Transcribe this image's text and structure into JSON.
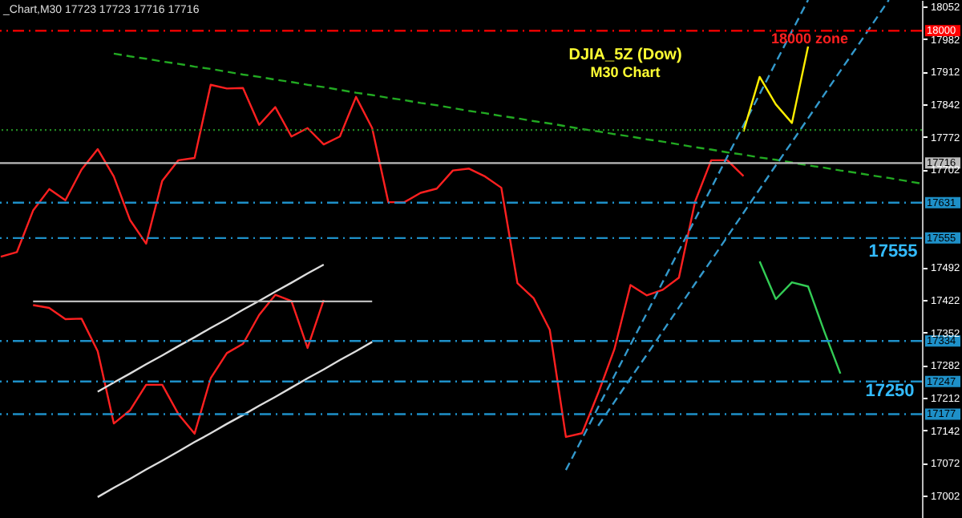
{
  "chart_data": {
    "type": "line",
    "title": "DJIA_5Z (Dow)",
    "subtitle": "M30 Chart",
    "categories": [
      null,
      null,
      null,
      null,
      null,
      null,
      null,
      null,
      null,
      null,
      null,
      null,
      null,
      null,
      null,
      null,
      null,
      null,
      null,
      null,
      null,
      null,
      null,
      null,
      null,
      null,
      null,
      null,
      null,
      null,
      null,
      null,
      null,
      null,
      null,
      null,
      null,
      null,
      null,
      null,
      null,
      null,
      null,
      null,
      null,
      null,
      null,
      null,
      null,
      null,
      null,
      null,
      null,
      null,
      null,
      null,
      null,
      null
    ],
    "ylim": [
      16954,
      18066
    ],
    "grid": false,
    "yticks": [
      18052,
      17982,
      17912,
      17842,
      17772,
      17702,
      17492,
      17422,
      17352,
      17282,
      17212,
      17142,
      17072,
      17002
    ],
    "series": [
      {
        "color": "#ff2020",
        "values": [
          17515,
          17525,
          17614,
          17660,
          17636,
          17702,
          17746,
          17687,
          17594,
          17543,
          17678,
          17722,
          17727,
          17884,
          17876,
          17877,
          17798,
          17836,
          17773,
          17791,
          17756,
          17773,
          17858,
          17791,
          17632,
          17632,
          17652,
          17661,
          17700,
          17704,
          17687,
          17663,
          17458,
          17426,
          17358,
          17128,
          17136,
          17222,
          17316,
          17454,
          17432,
          17444,
          17470,
          17633,
          17722,
          17722,
          17688,
          null,
          null,
          null,
          null,
          null,
          null,
          null,
          null,
          null,
          null,
          null
        ]
      },
      {
        "color": "#ff2020",
        "values": [
          null,
          null,
          17411,
          17405,
          17381,
          17382,
          17312,
          17157,
          17185,
          17240,
          17240,
          17177,
          17135,
          17254,
          17308,
          17328,
          17390,
          17433,
          17420,
          17319,
          17422,
          null,
          null,
          null,
          null,
          null,
          null,
          null,
          null,
          null,
          null,
          null,
          null,
          null,
          null,
          null,
          null,
          null,
          null,
          null,
          null,
          null,
          null,
          null,
          null,
          null,
          null,
          null,
          null,
          null,
          null,
          null,
          null,
          null,
          null,
          null,
          null,
          null
        ]
      },
      {
        "color": "#dddddd",
        "values": [
          null,
          null,
          null,
          null,
          null,
          null,
          17225,
          17245,
          17264,
          17284,
          17303,
          17323,
          17342,
          17362,
          17381,
          17401,
          17420,
          17440,
          17459,
          17479,
          17498,
          null,
          null,
          null,
          null,
          null,
          null,
          null,
          null,
          null,
          null,
          null,
          null,
          null,
          null,
          null,
          null,
          null,
          null,
          null,
          null,
          null,
          null,
          null,
          null,
          null,
          null,
          null,
          null,
          null,
          null,
          null,
          null,
          null,
          null,
          null,
          null,
          null
        ]
      },
      {
        "color": "#dddddd",
        "values": [
          null,
          null,
          null,
          null,
          null,
          null,
          16999,
          17019,
          17038,
          17058,
          17077,
          17097,
          17117,
          17136,
          17156,
          17175,
          17195,
          17214,
          17234,
          17254,
          17273,
          17293,
          17312,
          17332,
          null,
          null,
          null,
          null,
          null,
          null,
          null,
          null,
          null,
          null,
          null,
          null,
          null,
          null,
          null,
          null,
          null,
          null,
          null,
          null,
          null,
          null,
          null,
          null,
          null,
          null,
          null,
          null,
          null,
          null,
          null,
          null,
          null,
          null
        ]
      },
      {
        "color": "#bbbbbb",
        "values": [
          null,
          null,
          17419,
          17419,
          17419,
          17419,
          17419,
          17419,
          17419,
          17419,
          17419,
          17419,
          17419,
          17419,
          17419,
          17419,
          17419,
          17419,
          17419,
          17419,
          17419,
          17419,
          17419,
          17419,
          null,
          null,
          null,
          null,
          null,
          null,
          null,
          null,
          null,
          null,
          null,
          null,
          null,
          null,
          null,
          null,
          null,
          null,
          null,
          null,
          null,
          null,
          null,
          null,
          null,
          null,
          null,
          null,
          null,
          null,
          null,
          null,
          null,
          null
        ]
      },
      {
        "color": "#22aa22",
        "line_style": "dashed",
        "values": [
          null,
          null,
          null,
          null,
          null,
          null,
          null,
          17951,
          17945,
          17940,
          17934,
          17929,
          17923,
          17918,
          17912,
          17906,
          17901,
          17895,
          17890,
          17884,
          17879,
          17873,
          17867,
          17862,
          17856,
          17851,
          17845,
          17840,
          17834,
          17828,
          17823,
          17817,
          17812,
          17806,
          17801,
          17795,
          17789,
          17784,
          17778,
          17773,
          17767,
          17762,
          17756,
          17750,
          17745,
          17739,
          17734,
          17728,
          17723,
          17717,
          17711,
          17706,
          17700,
          17695,
          17689,
          17684,
          17678,
          17672
        ]
      },
      {
        "color": "#3399cc",
        "line_style": "dashed",
        "values": [
          null,
          null,
          null,
          null,
          null,
          null,
          null,
          null,
          null,
          null,
          null,
          null,
          null,
          null,
          null,
          null,
          null,
          null,
          null,
          null,
          null,
          null,
          null,
          null,
          null,
          null,
          null,
          null,
          null,
          null,
          null,
          null,
          null,
          null,
          null,
          17057,
          17124,
          17192,
          17259,
          17326,
          17393,
          17461,
          17528,
          17595,
          17662,
          17730,
          17797,
          17864,
          17932,
          17999,
          18066,
          null,
          null,
          null,
          null,
          null,
          null,
          null
        ]
      },
      {
        "color": "#3399cc",
        "line_style": "dashed",
        "values": [
          null,
          null,
          null,
          null,
          null,
          null,
          null,
          null,
          null,
          null,
          null,
          null,
          null,
          null,
          null,
          null,
          null,
          null,
          null,
          null,
          null,
          null,
          null,
          null,
          null,
          null,
          null,
          null,
          null,
          null,
          null,
          null,
          null,
          null,
          null,
          null,
          null,
          17152,
          17203,
          17254,
          17304,
          17355,
          17406,
          17457,
          17507,
          17558,
          17609,
          17660,
          17711,
          17761,
          17812,
          17863,
          17914,
          17964,
          18015,
          18066,
          null,
          null
        ]
      },
      {
        "color": "#ffee00",
        "values": [
          null,
          null,
          null,
          null,
          null,
          null,
          null,
          null,
          null,
          null,
          null,
          null,
          null,
          null,
          null,
          null,
          null,
          null,
          null,
          null,
          null,
          null,
          null,
          null,
          null,
          null,
          null,
          null,
          null,
          null,
          null,
          null,
          null,
          null,
          null,
          null,
          null,
          null,
          null,
          null,
          null,
          null,
          null,
          null,
          null,
          null,
          17784,
          17901,
          17842,
          17802,
          17966,
          null,
          null,
          null,
          null,
          null,
          null,
          null
        ]
      },
      {
        "color": "#33cc55",
        "values": [
          null,
          null,
          null,
          null,
          null,
          null,
          null,
          null,
          null,
          null,
          null,
          null,
          null,
          null,
          null,
          null,
          null,
          null,
          null,
          null,
          null,
          null,
          null,
          null,
          null,
          null,
          null,
          null,
          null,
          null,
          null,
          null,
          null,
          null,
          null,
          null,
          null,
          null,
          null,
          null,
          null,
          null,
          null,
          null,
          null,
          null,
          null,
          17505,
          17424,
          17460,
          17451,
          17355,
          17264,
          null,
          null,
          null,
          null,
          null
        ]
      }
    ],
    "ref_lines": [
      {
        "axis": "y",
        "value": 18000,
        "label": "18000",
        "color": "#ff0000",
        "line_style": "dashdot"
      },
      {
        "axis": "y",
        "value": 17787,
        "color": "#228822",
        "line_style": "dotted"
      },
      {
        "axis": "y",
        "value": 17716,
        "label": "17716",
        "color": "#bbbbbb",
        "line_style": "solid"
      },
      {
        "axis": "y",
        "value": 17631,
        "label": "17631",
        "color": "#1e90c8",
        "line_style": "dashdot"
      },
      {
        "axis": "y",
        "value": 17555,
        "label": "17555",
        "color": "#1e90c8",
        "line_style": "dashdot"
      },
      {
        "axis": "y",
        "value": 17334,
        "label": "17334",
        "color": "#1e90c8",
        "line_style": "dashdot"
      },
      {
        "axis": "y",
        "value": 17247,
        "label": "17247",
        "color": "#1e90c8",
        "line_style": "dashdot"
      },
      {
        "axis": "y",
        "value": 17177,
        "label": "17177",
        "color": "#1e90c8",
        "line_style": "dashdot"
      }
    ],
    "annotations": [
      "_Chart,M30  17723 17723 17716 17716",
      "18000 zone",
      "17555",
      "17250"
    ]
  }
}
